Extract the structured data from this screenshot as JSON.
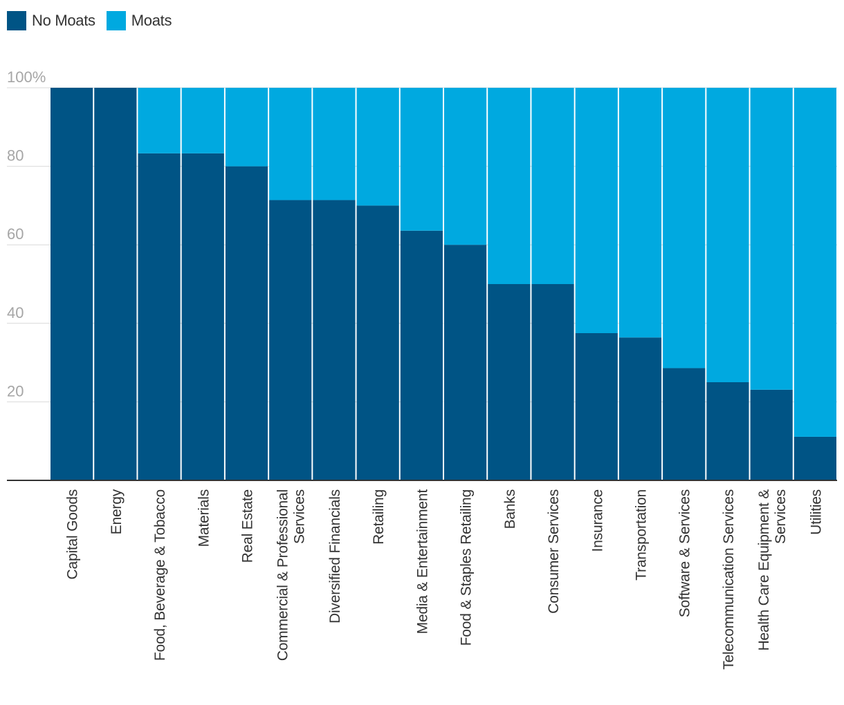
{
  "legend": [
    {
      "label": "No Moats",
      "color": "#005485"
    },
    {
      "label": "Moats",
      "color": "#00a9e0"
    }
  ],
  "chart_data": {
    "type": "bar",
    "stacked": true,
    "normalized": true,
    "categories": [
      [
        "Capital Goods"
      ],
      [
        "Energy"
      ],
      [
        "Food, Beverage & Tobacco"
      ],
      [
        "Materials"
      ],
      [
        "Real Estate"
      ],
      [
        "Commercial & Professional",
        "Services"
      ],
      [
        "Diversified Financials"
      ],
      [
        "Retailing"
      ],
      [
        "Media & Entertainment"
      ],
      [
        "Food & Staples Retailing"
      ],
      [
        "Banks"
      ],
      [
        "Consumer Services"
      ],
      [
        "Insurance"
      ],
      [
        "Transportation"
      ],
      [
        "Software & Services"
      ],
      [
        "Telecommunication Services"
      ],
      [
        "Health Care Equipment &",
        "Services"
      ],
      [
        "Utilities"
      ]
    ],
    "series": [
      {
        "name": "No Moats",
        "color": "#005485",
        "values": [
          100,
          100,
          83.3,
          83.3,
          80,
          71.4,
          71.4,
          70,
          63.6,
          60,
          50,
          50,
          37.5,
          36.4,
          28.6,
          25,
          23.1,
          11.1
        ]
      },
      {
        "name": "Moats",
        "color": "#00a9e0",
        "values": [
          0,
          0,
          16.7,
          16.7,
          20,
          28.6,
          28.6,
          30,
          36.4,
          40,
          50,
          50,
          62.5,
          63.6,
          71.4,
          75,
          76.9,
          88.9
        ]
      }
    ],
    "ylim": [
      0,
      100
    ],
    "yticks": [
      "",
      "20",
      "40",
      "60",
      "80",
      "100%"
    ],
    "ytick_values": [
      0,
      20,
      40,
      60,
      80,
      100
    ],
    "grid": true,
    "legend_position": "top-left",
    "title": "",
    "xlabel": "",
    "ylabel": ""
  }
}
